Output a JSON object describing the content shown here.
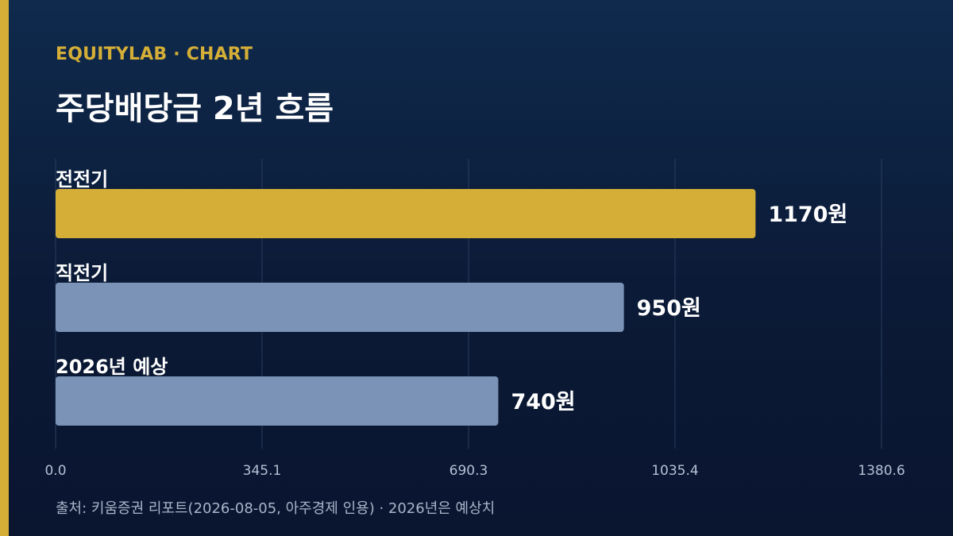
{
  "header": {
    "kicker": "EQUITYLAB · CHART",
    "title": "주당배당금 2년 흐름"
  },
  "footer": {
    "source": "출처: 키움증권 리포트(2026-08-05, 아주경제 인용) · 2026년은 예상치"
  },
  "colors": {
    "accent": "#d4ae37",
    "bar_highlight": "#d4ae37",
    "bar_default": "#7b93b6",
    "grid": "#2a3d5c",
    "tick_text": "#b3c0d2"
  },
  "chart_data": {
    "type": "bar",
    "orientation": "horizontal",
    "categories": [
      "전전기",
      "직전기",
      "2026년 예상"
    ],
    "values": [
      1170,
      950,
      740
    ],
    "value_labels": [
      "1170원",
      "950원",
      "740원"
    ],
    "highlight_index": 0,
    "xlim": [
      0,
      1380.6
    ],
    "xticks": [
      0,
      345.1,
      690.3,
      1035.4,
      1380.6
    ],
    "xtick_labels": [
      "0.0",
      "345.1",
      "690.3",
      "1035.4",
      "1380.6"
    ],
    "grid": true,
    "title": "주당배당금 2년 흐름",
    "xlabel": "",
    "ylabel": ""
  }
}
